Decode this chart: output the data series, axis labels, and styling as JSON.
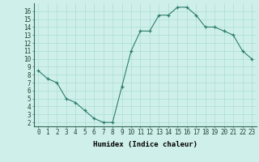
{
  "x": [
    0,
    1,
    2,
    3,
    4,
    5,
    6,
    7,
    8,
    9,
    10,
    11,
    12,
    13,
    14,
    15,
    16,
    17,
    18,
    19,
    20,
    21,
    22,
    23
  ],
  "y": [
    8.5,
    7.5,
    7.0,
    5.0,
    4.5,
    3.5,
    2.5,
    2.0,
    2.0,
    6.5,
    11.0,
    13.5,
    13.5,
    15.5,
    15.5,
    16.5,
    16.5,
    15.5,
    14.0,
    14.0,
    13.5,
    13.0,
    11.0,
    10.0
  ],
  "line_color": "#2e7d6e",
  "marker": "+",
  "bg_color": "#cff0ea",
  "grid_color": "#aaddd5",
  "xlabel": "Humidex (Indice chaleur)",
  "ylim_min": 1.5,
  "ylim_max": 17.0,
  "xlim_min": -0.5,
  "xlim_max": 23.5,
  "yticks": [
    2,
    3,
    4,
    5,
    6,
    7,
    8,
    9,
    10,
    11,
    12,
    13,
    14,
    15,
    16
  ],
  "xticks": [
    0,
    1,
    2,
    3,
    4,
    5,
    6,
    7,
    8,
    9,
    10,
    11,
    12,
    13,
    14,
    15,
    16,
    17,
    18,
    19,
    20,
    21,
    22,
    23
  ],
  "tick_fontsize": 5.5,
  "label_fontsize": 6.5
}
